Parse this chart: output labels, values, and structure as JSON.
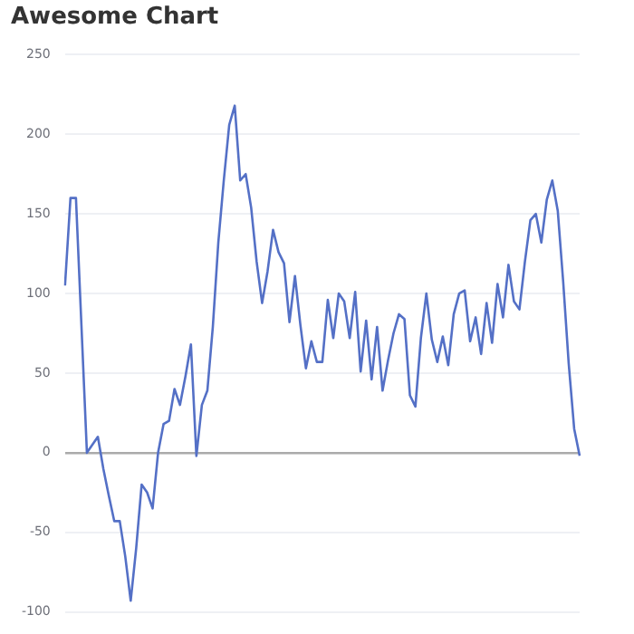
{
  "chart_data": {
    "type": "line",
    "title": "Awesome Chart",
    "categories": [
      null,
      null,
      null,
      null,
      null,
      null,
      null,
      null,
      null,
      null,
      null,
      null,
      null,
      null,
      null,
      null,
      null,
      null,
      null,
      null,
      null,
      null,
      null,
      null,
      null,
      null,
      null,
      null,
      null,
      null,
      null,
      null,
      null,
      null,
      null,
      null,
      null,
      null,
      null,
      null,
      null,
      null,
      null,
      null,
      null,
      null,
      null,
      null,
      null,
      null,
      null,
      null,
      null,
      null,
      null,
      null,
      null,
      null,
      null,
      null,
      null,
      null,
      null,
      null,
      null,
      null,
      null,
      null,
      null,
      null,
      null,
      null,
      null,
      null,
      null,
      null,
      null,
      null,
      null,
      null,
      null,
      null,
      null,
      null,
      null,
      null,
      null,
      null,
      null,
      null,
      null,
      null,
      null,
      null,
      null
    ],
    "series": [
      {
        "color": "#5470c6",
        "values": [
          105,
          160,
          160,
          80,
          0,
          5,
          10,
          -10,
          -27,
          -43,
          -43,
          -65,
          -93,
          -60,
          -20,
          -25,
          -35,
          0,
          18,
          20,
          40,
          30,
          48,
          68,
          -2,
          30,
          39,
          79,
          132,
          171,
          206,
          218,
          171,
          175,
          154,
          120,
          94,
          114,
          140,
          126,
          119,
          82,
          111,
          80,
          53,
          70,
          57,
          57,
          96,
          72,
          100,
          95,
          72,
          101,
          51,
          83,
          46,
          79,
          39,
          58,
          75,
          87,
          84,
          36,
          29,
          72,
          100,
          71,
          57,
          73,
          55,
          87,
          100,
          102,
          70,
          85,
          62,
          94,
          69,
          106,
          85,
          118,
          95,
          90,
          120,
          146,
          150,
          132,
          159,
          171,
          152,
          107,
          56,
          15,
          -2
        ]
      }
    ],
    "ylim": [
      -100,
      250
    ],
    "yticks": [
      -100,
      -50,
      0,
      50,
      100,
      150,
      200,
      250
    ],
    "grid": "y",
    "tick_labels": "y",
    "marker": "none",
    "line_style": "solid",
    "legend": false
  }
}
